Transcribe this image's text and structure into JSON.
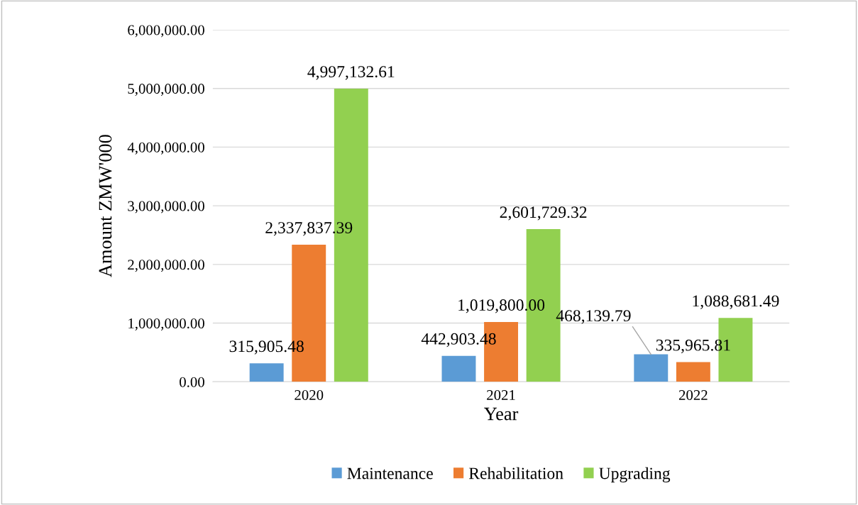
{
  "chart_data": {
    "type": "bar",
    "xlabel": "Year",
    "ylabel": "Amount ZMW'000",
    "categories": [
      "2020",
      "2021",
      "2022"
    ],
    "series": [
      {
        "name": "Maintenance",
        "color": "#5b9bd5",
        "values": [
          315905.48,
          442903.48,
          468139.79
        ],
        "value_labels": [
          "315,905.48",
          "442,903.48",
          "468,139.79"
        ]
      },
      {
        "name": "Rehabilitation",
        "color": "#ed7d31",
        "values": [
          2337837.39,
          1019800.0,
          335965.81
        ],
        "value_labels": [
          "2,337,837.39",
          "1,019,800.00",
          "335,965.81"
        ]
      },
      {
        "name": "Upgrading",
        "color": "#92d050",
        "values": [
          4997132.61,
          2601729.32,
          1088681.49
        ],
        "value_labels": [
          "4,997,132.61",
          "2,601,729.32",
          "1,088,681.49"
        ]
      }
    ],
    "ylim": [
      0,
      6000000
    ],
    "yticks": [
      {
        "value": 0,
        "label": "0.00"
      },
      {
        "value": 1000000,
        "label": "1,000,000.00"
      },
      {
        "value": 2000000,
        "label": "2,000,000.00"
      },
      {
        "value": 3000000,
        "label": "3,000,000.00"
      },
      {
        "value": 4000000,
        "label": "4,000,000.00"
      },
      {
        "value": 5000000,
        "label": "5,000,000.00"
      },
      {
        "value": 6000000,
        "label": "6,000,000.00"
      }
    ],
    "grid": "y",
    "legend": "bottom"
  }
}
